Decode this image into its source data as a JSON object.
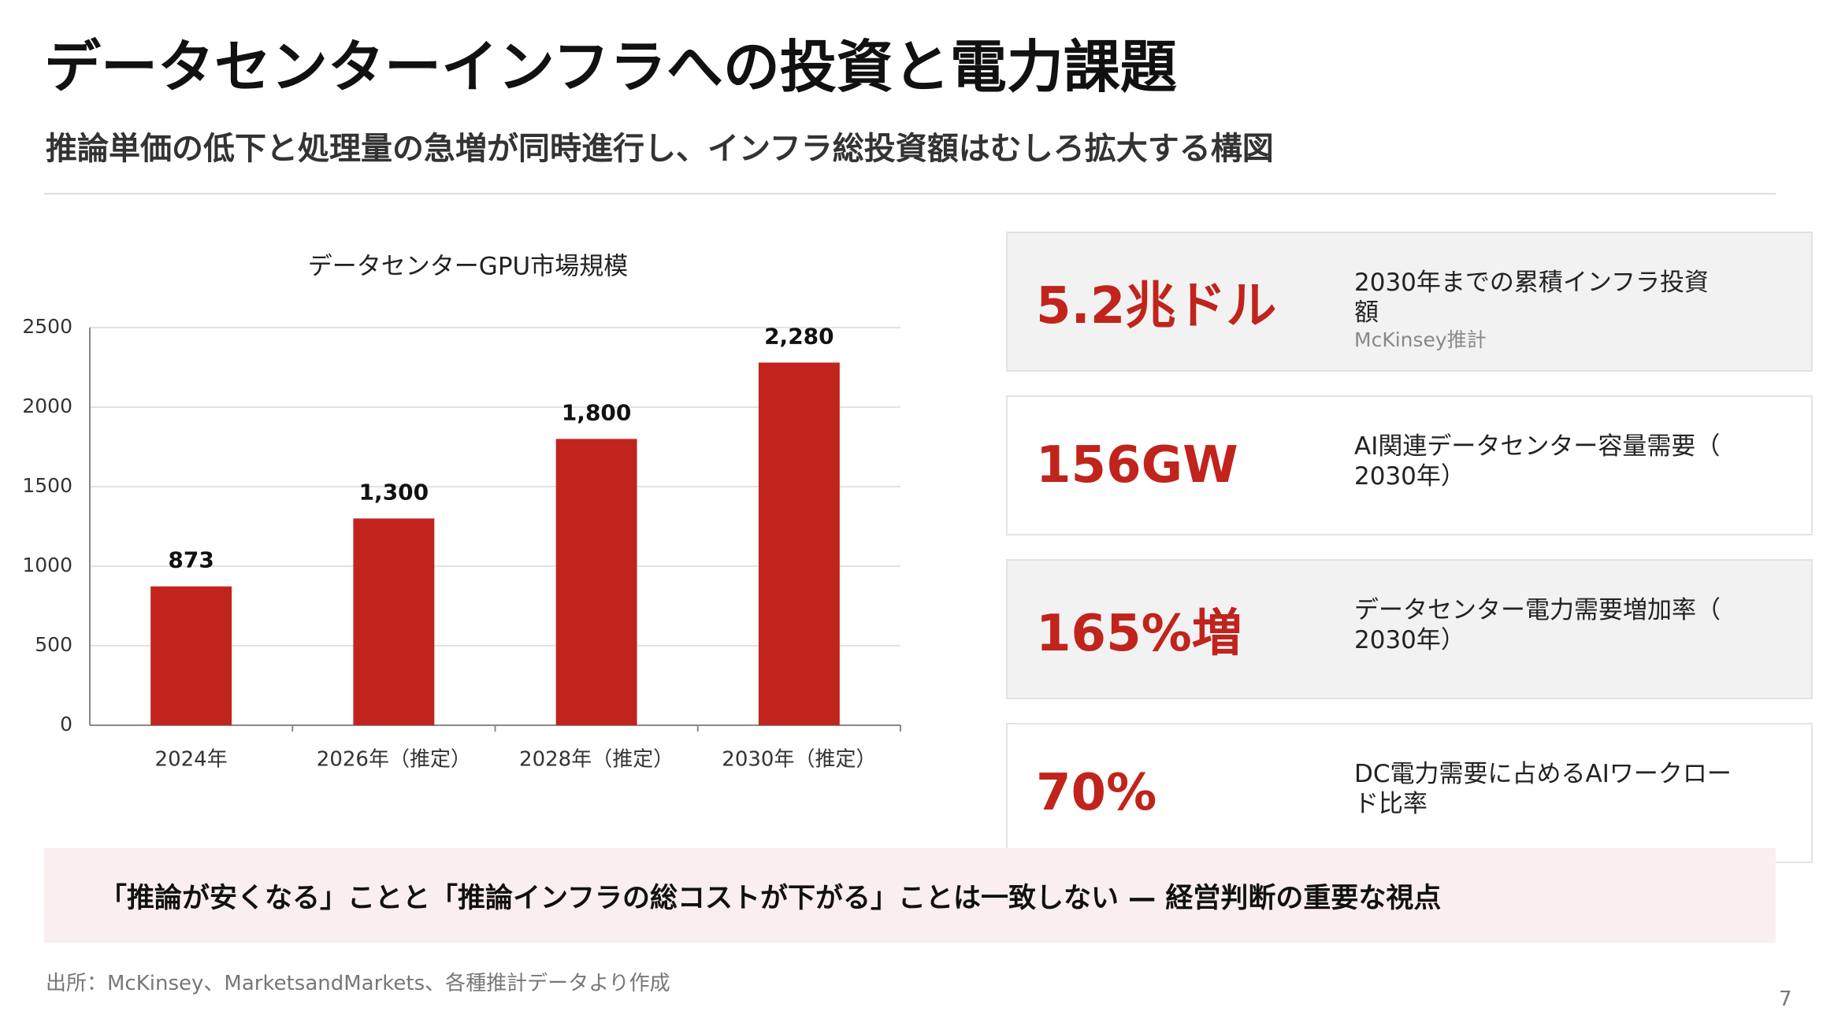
{
  "header": {
    "title": "データセンターインフラへの投資と電力課題",
    "subtitle": "推論単価の低下と処理量の急増が同時進行し、インフラ総投資額はむしろ拡大する構図"
  },
  "chart_data": {
    "type": "bar",
    "title": "データセンターGPU市場規模",
    "categories": [
      "2024年",
      "2026年（推定）",
      "2028年（推定）",
      "2030年（推定）"
    ],
    "values": [
      873,
      1300,
      1800,
      2280
    ],
    "value_labels": [
      "873",
      "1,300",
      "1,800",
      "2,280"
    ],
    "color": "#c0241c",
    "ylim": [
      0,
      2500
    ],
    "yticks": [
      0,
      500,
      1000,
      1500,
      2000,
      2500
    ],
    "grid": true
  },
  "cards": [
    {
      "value": "5.2兆ドル",
      "description": "2030年までの累積インフラ投資額",
      "source": "McKinsey推計"
    },
    {
      "value": "156GW",
      "description": "AI関連データセンター容量需要（2030年）"
    },
    {
      "value": "165%増",
      "description": "データセンター電力需要増加率（2030年）"
    },
    {
      "value": "70%",
      "description": "DC電力需要に占めるAIワークロード比率"
    }
  ],
  "callout": "「推論が安くなる」ことと「推論インフラの総コストが下がる」ことは一致しない — 経営判断の重要な視点",
  "footer": {
    "source": "出所：McKinsey、MarketsandMarkets、各種推計データより作成",
    "page": "7"
  }
}
